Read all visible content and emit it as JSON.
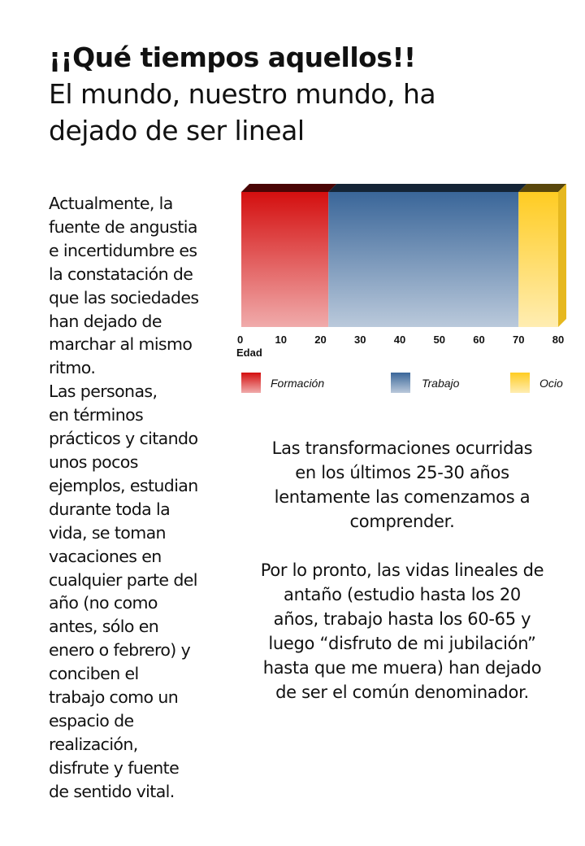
{
  "title": {
    "line1": "¡¡Qué tiempos aquellos!!",
    "line2": "El mundo, nuestro mundo, ha",
    "line3": "dejado de ser lineal"
  },
  "left_text": {
    "lines": [
      "Actualmente, la",
      "fuente de angustia",
      "e incertidumbre es",
      "la constatación de",
      "que las sociedades",
      "han dejado de",
      "marchar al mismo",
      "ritmo.",
      "Las personas,",
      "en términos",
      "prácticos y citando",
      "unos pocos",
      "ejemplos, estudian",
      "durante toda la",
      "vida, se toman",
      "vacaciones en",
      "cualquier parte del",
      "año (no como",
      "antes, sólo en",
      "enero o febrero) y",
      "conciben el",
      "trabajo como un",
      "espacio de",
      "realización,",
      "disfrute y fuente",
      "de sentido vital."
    ]
  },
  "right_text": {
    "p1": "Las transformaciones ocurridas en los últimos 25-30 años lentamente las comenzamos a comprender.",
    "p2": "Por lo pronto, las vidas lineales de antaño (estudio hasta los 20 años, trabajo hasta los 60-65 y luego “disfruto de mi jubilación” hasta que me muera) han dejado de ser el común denominador."
  },
  "chart_data": {
    "type": "bar",
    "orientation": "horizontal-stacked",
    "xlabel": "Edad",
    "xlim": [
      0,
      80
    ],
    "xticks": [
      "0",
      "10",
      "20",
      "30",
      "40",
      "50",
      "60",
      "70",
      "80"
    ],
    "series": [
      {
        "name": "Formación",
        "start": 0,
        "end": 22,
        "color": "#d40f0f"
      },
      {
        "name": "Trabajo",
        "start": 22,
        "end": 70,
        "color": "#3a6699"
      },
      {
        "name": "Ocio",
        "start": 70,
        "end": 80,
        "color": "#ffcc22"
      }
    ],
    "legend": "bottom",
    "grid": false
  }
}
